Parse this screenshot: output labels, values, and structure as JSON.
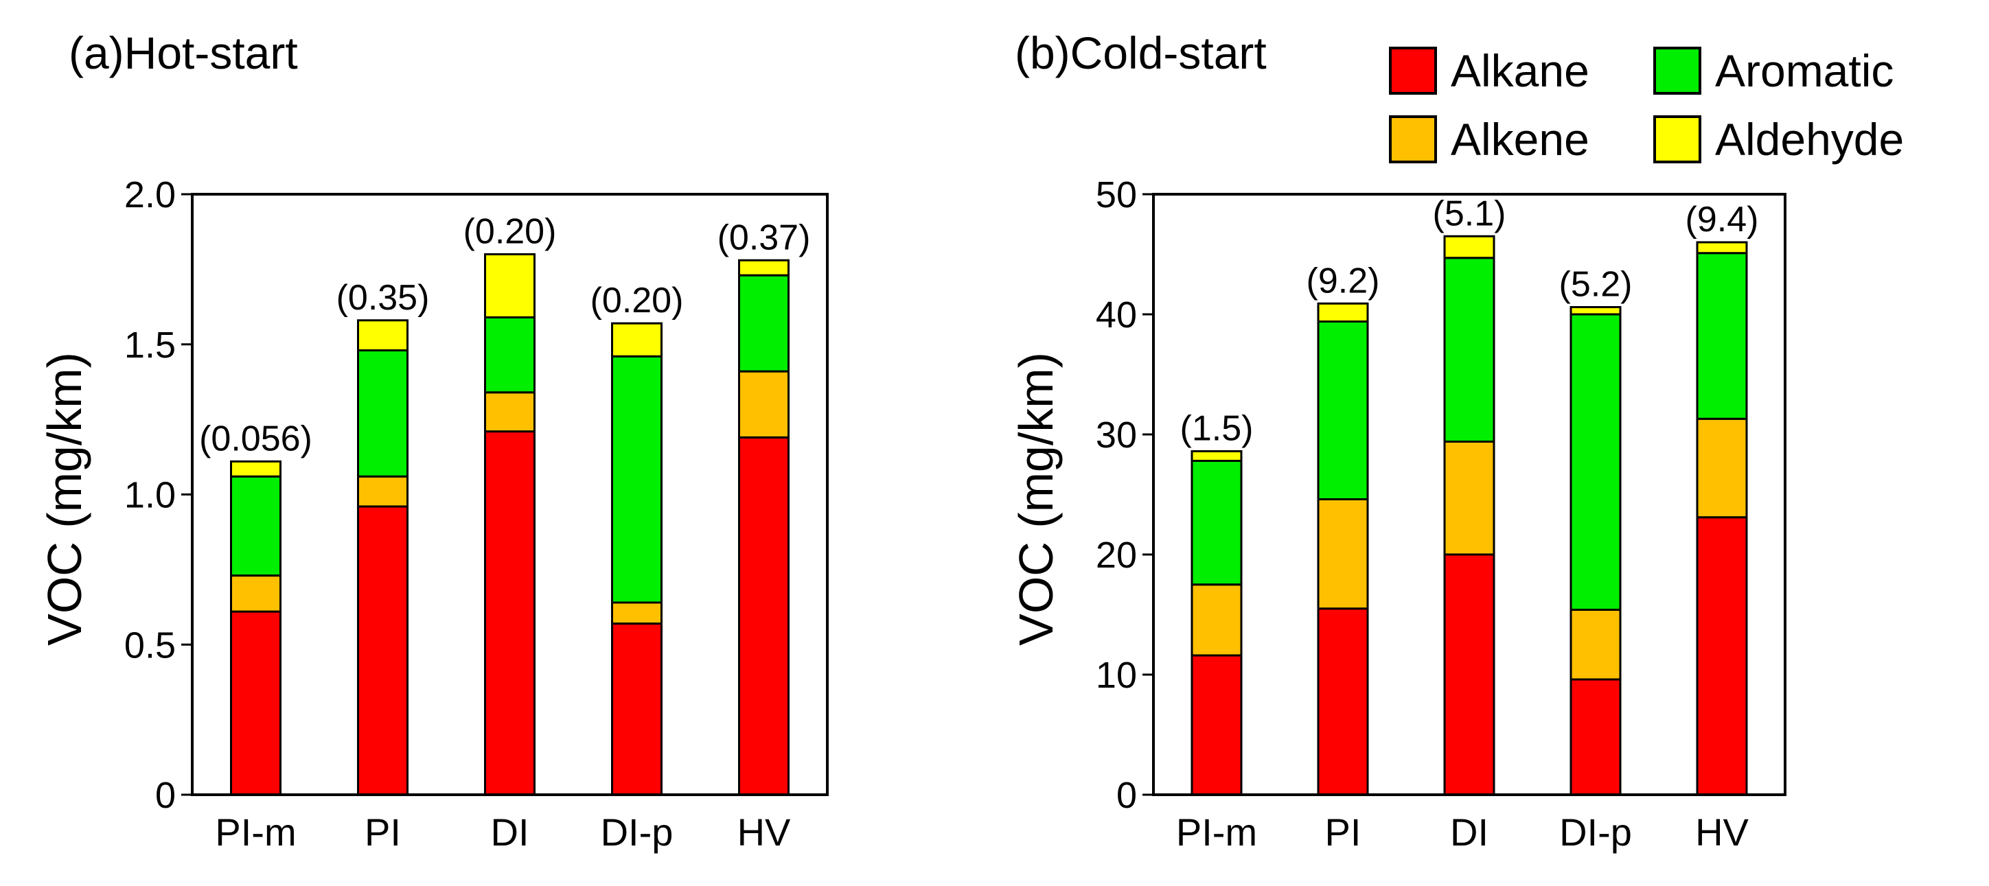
{
  "colors": {
    "Alkane": "#ff0000",
    "Alkene": "#ffc000",
    "Aromatic": "#00ee00",
    "Aldehyde": "#ffff00"
  },
  "legend": {
    "entries": [
      "Alkane",
      "Aromatic",
      "Alkene",
      "Aldehyde"
    ]
  },
  "chart_data": [
    {
      "type": "bar",
      "stacked": true,
      "title": "(a)Hot-start",
      "ylabel": "VOC (mg/km)",
      "xlabel": "",
      "categories": [
        "PI-m",
        "PI",
        "DI",
        "DI-p",
        "HV"
      ],
      "ylim": [
        0,
        2.0
      ],
      "yticks": [
        0,
        0.5,
        1.0,
        1.5,
        2.0
      ],
      "ytick_labels": [
        "0",
        "0.5",
        "1.0",
        "1.5",
        "2.0"
      ],
      "series": [
        {
          "name": "Alkane",
          "values": [
            0.61,
            0.96,
            1.21,
            0.57,
            1.19
          ]
        },
        {
          "name": "Alkene",
          "values": [
            0.12,
            0.1,
            0.13,
            0.07,
            0.22
          ]
        },
        {
          "name": "Aromatic",
          "values": [
            0.33,
            0.42,
            0.25,
            0.82,
            0.32
          ]
        },
        {
          "name": "Aldehyde",
          "values": [
            0.05,
            0.1,
            0.21,
            0.11,
            0.05
          ]
        }
      ],
      "annotations": [
        "(0.056)",
        "(0.35)",
        "(0.20)",
        "(0.20)",
        "(0.37)"
      ]
    },
    {
      "type": "bar",
      "stacked": true,
      "title": "(b)Cold-start",
      "ylabel": "VOC (mg/km)",
      "xlabel": "",
      "categories": [
        "PI-m",
        "PI",
        "DI",
        "DI-p",
        "HV"
      ],
      "ylim": [
        0,
        50
      ],
      "yticks": [
        0,
        10,
        20,
        30,
        40,
        50
      ],
      "ytick_labels": [
        "0",
        "10",
        "20",
        "30",
        "40",
        "50"
      ],
      "series": [
        {
          "name": "Alkane",
          "values": [
            11.6,
            15.5,
            20.0,
            9.6,
            23.1
          ]
        },
        {
          "name": "Alkene",
          "values": [
            5.9,
            9.1,
            9.4,
            5.8,
            8.2
          ]
        },
        {
          "name": "Aromatic",
          "values": [
            10.3,
            14.8,
            15.3,
            24.6,
            13.8
          ]
        },
        {
          "name": "Aldehyde",
          "values": [
            0.8,
            1.5,
            1.8,
            0.6,
            0.9
          ]
        }
      ],
      "annotations": [
        "(1.5)",
        "(9.2)",
        "(5.1)",
        "(5.2)",
        "(9.4)"
      ]
    }
  ]
}
